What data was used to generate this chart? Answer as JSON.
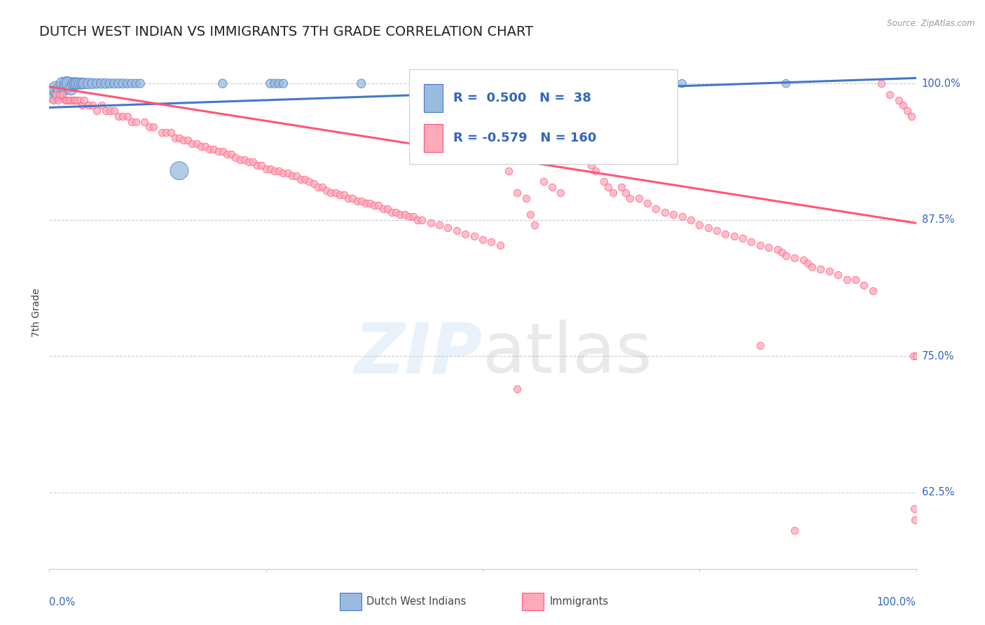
{
  "title": "DUTCH WEST INDIAN VS IMMIGRANTS 7TH GRADE CORRELATION CHART",
  "source": "Source: ZipAtlas.com",
  "ylabel": "7th Grade",
  "legend_blue_R": "R =  0.500",
  "legend_blue_N": "N =  38",
  "legend_pink_R": "R = -0.579",
  "legend_pink_N": "N = 160",
  "legend_blue_label": "Dutch West Indians",
  "legend_pink_label": "Immigrants",
  "ytick_labels": [
    "100.0%",
    "87.5%",
    "75.0%",
    "62.5%"
  ],
  "ytick_values": [
    1.0,
    0.875,
    0.75,
    0.625
  ],
  "xlim": [
    0.0,
    1.0
  ],
  "ylim": [
    0.555,
    1.025
  ],
  "blue_color": "#99BBDD",
  "pink_color": "#FFAABB",
  "blue_line_color": "#4477CC",
  "pink_line_color": "#FF5577",
  "title_color": "#222222",
  "source_color": "#999999",
  "axis_label_color": "#444444",
  "ytick_color": "#3366BB",
  "grid_color": "#CCCCCC",
  "background_color": "#FFFFFF",
  "blue_scatter": [
    [
      0.005,
      0.99
    ],
    [
      0.008,
      0.995
    ],
    [
      0.01,
      0.99
    ],
    [
      0.012,
      0.995
    ],
    [
      0.015,
      1.0
    ],
    [
      0.018,
      0.995
    ],
    [
      0.02,
      1.0
    ],
    [
      0.022,
      1.0
    ],
    [
      0.025,
      0.995
    ],
    [
      0.028,
      1.0
    ],
    [
      0.03,
      1.0
    ],
    [
      0.032,
      1.0
    ],
    [
      0.035,
      1.0
    ],
    [
      0.038,
      1.0
    ],
    [
      0.04,
      1.0
    ],
    [
      0.045,
      1.0
    ],
    [
      0.05,
      1.0
    ],
    [
      0.055,
      1.0
    ],
    [
      0.06,
      1.0
    ],
    [
      0.065,
      1.0
    ],
    [
      0.07,
      1.0
    ],
    [
      0.075,
      1.0
    ],
    [
      0.08,
      1.0
    ],
    [
      0.085,
      1.0
    ],
    [
      0.09,
      1.0
    ],
    [
      0.095,
      1.0
    ],
    [
      0.1,
      1.0
    ],
    [
      0.105,
      1.0
    ],
    [
      0.15,
      0.92
    ],
    [
      0.2,
      1.0
    ],
    [
      0.255,
      1.0
    ],
    [
      0.26,
      1.0
    ],
    [
      0.265,
      1.0
    ],
    [
      0.27,
      1.0
    ],
    [
      0.36,
      1.0
    ],
    [
      0.72,
      1.0
    ],
    [
      0.73,
      1.0
    ],
    [
      0.85,
      1.0
    ]
  ],
  "blue_sizes": [
    300,
    250,
    200,
    180,
    160,
    160,
    200,
    180,
    160,
    150,
    140,
    140,
    130,
    130,
    120,
    120,
    110,
    100,
    100,
    100,
    90,
    90,
    90,
    90,
    80,
    80,
    80,
    80,
    350,
    80,
    80,
    80,
    80,
    80,
    80,
    70,
    70,
    70
  ],
  "pink_scatter": [
    [
      0.005,
      0.985
    ],
    [
      0.008,
      0.99
    ],
    [
      0.01,
      0.985
    ],
    [
      0.012,
      0.99
    ],
    [
      0.015,
      0.99
    ],
    [
      0.018,
      0.985
    ],
    [
      0.02,
      0.985
    ],
    [
      0.022,
      0.985
    ],
    [
      0.025,
      0.985
    ],
    [
      0.028,
      0.985
    ],
    [
      0.03,
      0.985
    ],
    [
      0.032,
      0.985
    ],
    [
      0.035,
      0.985
    ],
    [
      0.038,
      0.98
    ],
    [
      0.04,
      0.985
    ],
    [
      0.045,
      0.98
    ],
    [
      0.05,
      0.98
    ],
    [
      0.055,
      0.975
    ],
    [
      0.06,
      0.98
    ],
    [
      0.065,
      0.975
    ],
    [
      0.07,
      0.975
    ],
    [
      0.075,
      0.975
    ],
    [
      0.08,
      0.97
    ],
    [
      0.085,
      0.97
    ],
    [
      0.09,
      0.97
    ],
    [
      0.095,
      0.965
    ],
    [
      0.1,
      0.965
    ],
    [
      0.11,
      0.965
    ],
    [
      0.115,
      0.96
    ],
    [
      0.12,
      0.96
    ],
    [
      0.13,
      0.955
    ],
    [
      0.135,
      0.955
    ],
    [
      0.14,
      0.955
    ],
    [
      0.145,
      0.95
    ],
    [
      0.15,
      0.95
    ],
    [
      0.155,
      0.948
    ],
    [
      0.16,
      0.948
    ],
    [
      0.165,
      0.945
    ],
    [
      0.17,
      0.945
    ],
    [
      0.175,
      0.942
    ],
    [
      0.18,
      0.942
    ],
    [
      0.185,
      0.94
    ],
    [
      0.19,
      0.94
    ],
    [
      0.195,
      0.938
    ],
    [
      0.2,
      0.938
    ],
    [
      0.205,
      0.935
    ],
    [
      0.21,
      0.935
    ],
    [
      0.215,
      0.932
    ],
    [
      0.22,
      0.93
    ],
    [
      0.225,
      0.93
    ],
    [
      0.23,
      0.928
    ],
    [
      0.235,
      0.928
    ],
    [
      0.24,
      0.925
    ],
    [
      0.245,
      0.925
    ],
    [
      0.25,
      0.922
    ],
    [
      0.255,
      0.922
    ],
    [
      0.26,
      0.92
    ],
    [
      0.265,
      0.92
    ],
    [
      0.27,
      0.918
    ],
    [
      0.275,
      0.918
    ],
    [
      0.28,
      0.915
    ],
    [
      0.285,
      0.915
    ],
    [
      0.29,
      0.912
    ],
    [
      0.295,
      0.912
    ],
    [
      0.3,
      0.91
    ],
    [
      0.305,
      0.908
    ],
    [
      0.31,
      0.905
    ],
    [
      0.315,
      0.905
    ],
    [
      0.32,
      0.902
    ],
    [
      0.325,
      0.9
    ],
    [
      0.33,
      0.9
    ],
    [
      0.335,
      0.898
    ],
    [
      0.34,
      0.898
    ],
    [
      0.345,
      0.895
    ],
    [
      0.35,
      0.895
    ],
    [
      0.355,
      0.892
    ],
    [
      0.36,
      0.892
    ],
    [
      0.365,
      0.89
    ],
    [
      0.37,
      0.89
    ],
    [
      0.375,
      0.888
    ],
    [
      0.38,
      0.888
    ],
    [
      0.385,
      0.885
    ],
    [
      0.39,
      0.885
    ],
    [
      0.395,
      0.882
    ],
    [
      0.4,
      0.882
    ],
    [
      0.405,
      0.88
    ],
    [
      0.41,
      0.88
    ],
    [
      0.415,
      0.878
    ],
    [
      0.42,
      0.878
    ],
    [
      0.425,
      0.875
    ],
    [
      0.43,
      0.875
    ],
    [
      0.44,
      0.872
    ],
    [
      0.45,
      0.87
    ],
    [
      0.46,
      0.868
    ],
    [
      0.47,
      0.865
    ],
    [
      0.48,
      0.862
    ],
    [
      0.49,
      0.86
    ],
    [
      0.5,
      0.857
    ],
    [
      0.51,
      0.855
    ],
    [
      0.52,
      0.852
    ],
    [
      0.53,
      0.92
    ],
    [
      0.54,
      0.9
    ],
    [
      0.55,
      0.895
    ],
    [
      0.555,
      0.88
    ],
    [
      0.56,
      0.87
    ],
    [
      0.57,
      0.91
    ],
    [
      0.58,
      0.905
    ],
    [
      0.59,
      0.9
    ],
    [
      0.6,
      0.95
    ],
    [
      0.61,
      0.94
    ],
    [
      0.615,
      0.935
    ],
    [
      0.62,
      0.93
    ],
    [
      0.625,
      0.925
    ],
    [
      0.63,
      0.92
    ],
    [
      0.64,
      0.91
    ],
    [
      0.645,
      0.905
    ],
    [
      0.65,
      0.9
    ],
    [
      0.66,
      0.905
    ],
    [
      0.665,
      0.9
    ],
    [
      0.67,
      0.895
    ],
    [
      0.68,
      0.895
    ],
    [
      0.69,
      0.89
    ],
    [
      0.7,
      0.885
    ],
    [
      0.71,
      0.882
    ],
    [
      0.72,
      0.88
    ],
    [
      0.73,
      0.878
    ],
    [
      0.74,
      0.875
    ],
    [
      0.75,
      0.87
    ],
    [
      0.76,
      0.868
    ],
    [
      0.77,
      0.865
    ],
    [
      0.78,
      0.862
    ],
    [
      0.79,
      0.86
    ],
    [
      0.8,
      0.858
    ],
    [
      0.81,
      0.855
    ],
    [
      0.82,
      0.852
    ],
    [
      0.83,
      0.85
    ],
    [
      0.84,
      0.848
    ],
    [
      0.845,
      0.845
    ],
    [
      0.85,
      0.842
    ],
    [
      0.86,
      0.84
    ],
    [
      0.87,
      0.838
    ],
    [
      0.875,
      0.835
    ],
    [
      0.88,
      0.832
    ],
    [
      0.89,
      0.83
    ],
    [
      0.9,
      0.828
    ],
    [
      0.91,
      0.825
    ],
    [
      0.92,
      0.82
    ],
    [
      0.93,
      0.82
    ],
    [
      0.94,
      0.815
    ],
    [
      0.95,
      0.81
    ],
    [
      0.82,
      0.76
    ],
    [
      0.54,
      0.72
    ],
    [
      0.96,
      1.0
    ],
    [
      0.97,
      0.99
    ],
    [
      0.98,
      0.985
    ],
    [
      0.985,
      0.98
    ],
    [
      0.99,
      0.975
    ],
    [
      0.995,
      0.97
    ],
    [
      0.997,
      0.75
    ],
    [
      0.998,
      0.61
    ],
    [
      0.999,
      0.6
    ],
    [
      1.0,
      0.75
    ],
    [
      0.86,
      0.59
    ]
  ],
  "blue_trendline": [
    [
      0.0,
      0.978
    ],
    [
      1.0,
      1.005
    ]
  ],
  "pink_trendline": [
    [
      0.0,
      0.997
    ],
    [
      1.0,
      0.872
    ]
  ]
}
